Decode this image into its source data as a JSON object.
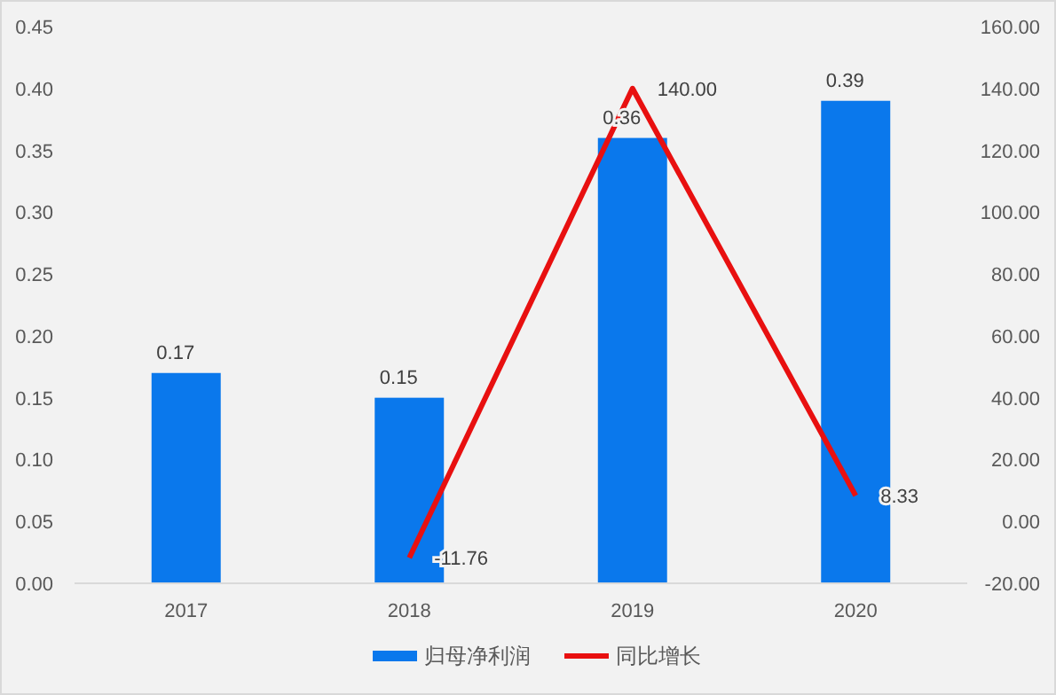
{
  "chart_data": {
    "type": "bar",
    "categories": [
      "2017",
      "2018",
      "2019",
      "2020"
    ],
    "series": [
      {
        "name": "归母净利润",
        "color": "#0a78ec",
        "values": [
          0.17,
          0.15,
          0.36,
          0.39
        ],
        "value_labels": [
          "0.17",
          "0.15",
          "0.36",
          "0.39"
        ]
      },
      {
        "name": "同比增长",
        "type": "line",
        "axis": "y2",
        "color": "#e81010",
        "values": [
          null,
          -11.76,
          140.0,
          8.33
        ],
        "value_labels": [
          null,
          "-11.76",
          "140.00",
          "8.33"
        ]
      }
    ],
    "ylim": [
      0,
      0.45
    ],
    "yticks": [
      {
        "value": 0,
        "label": "0.00"
      },
      {
        "value": 0.05,
        "label": "0.05"
      },
      {
        "value": 0.1,
        "label": "0.10"
      },
      {
        "value": 0.15,
        "label": "0.15"
      },
      {
        "value": 0.2,
        "label": "0.20"
      },
      {
        "value": 0.25,
        "label": "0.25"
      },
      {
        "value": 0.3,
        "label": "0.30"
      },
      {
        "value": 0.35,
        "label": "0.35"
      },
      {
        "value": 0.4,
        "label": "0.40"
      },
      {
        "value": 0.45,
        "label": "0.45"
      }
    ],
    "y2lim": [
      -20,
      160
    ],
    "y2ticks": [
      {
        "value": -20,
        "label": "-20.00"
      },
      {
        "value": 0,
        "label": "0.00"
      },
      {
        "value": 20,
        "label": "20.00"
      },
      {
        "value": 40,
        "label": "40.00"
      },
      {
        "value": 60,
        "label": "60.00"
      },
      {
        "value": 80,
        "label": "80.00"
      },
      {
        "value": 100,
        "label": "100.00"
      },
      {
        "value": 120,
        "label": "120.00"
      },
      {
        "value": 140,
        "label": "140.00"
      },
      {
        "value": 160,
        "label": "160.00"
      }
    ],
    "grid": false,
    "legend": "bottom",
    "marker": "none",
    "line_style": "solid"
  }
}
